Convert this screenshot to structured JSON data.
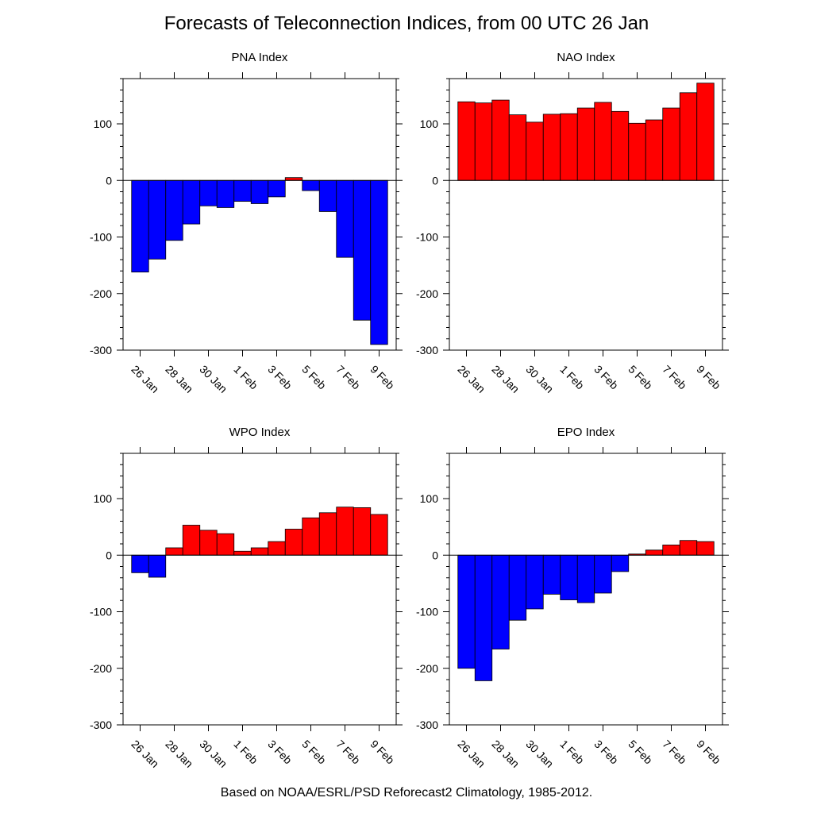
{
  "title": "Forecasts of Teleconnection Indices, from 00 UTC 26 Jan",
  "footer": "Based on NOAA/ESRL/PSD Reforecast2 Climatology, 1985-2012.",
  "colors": {
    "positive": "#ff0000",
    "negative": "#0000ff"
  },
  "chart_data": [
    {
      "type": "bar",
      "title": "PNA Index",
      "categories": [
        "26 Jan",
        "27 Jan",
        "28 Jan",
        "29 Jan",
        "30 Jan",
        "31 Jan",
        "1 Feb",
        "2 Feb",
        "3 Feb",
        "4 Feb",
        "5 Feb",
        "6 Feb",
        "7 Feb",
        "8 Feb",
        "9 Feb"
      ],
      "values": [
        -162,
        -139,
        -106,
        -77,
        -45,
        -48,
        -37,
        -41,
        -29,
        5,
        -18,
        -55,
        -136,
        -247,
        -290
      ],
      "xticks": [
        "26 Jan",
        "28 Jan",
        "30 Jan",
        "1 Feb",
        "3 Feb",
        "5 Feb",
        "7 Feb",
        "9 Feb"
      ],
      "ylim": [
        -300,
        180
      ],
      "yticks": [
        -300,
        -200,
        -100,
        0,
        100
      ]
    },
    {
      "type": "bar",
      "title": "NAO Index",
      "categories": [
        "26 Jan",
        "27 Jan",
        "28 Jan",
        "29 Jan",
        "30 Jan",
        "31 Jan",
        "1 Feb",
        "2 Feb",
        "3 Feb",
        "4 Feb",
        "5 Feb",
        "6 Feb",
        "7 Feb",
        "8 Feb",
        "9 Feb"
      ],
      "values": [
        139,
        137,
        142,
        116,
        103,
        117,
        118,
        128,
        138,
        122,
        101,
        107,
        128,
        155,
        172
      ],
      "xticks": [
        "26 Jan",
        "28 Jan",
        "30 Jan",
        "1 Feb",
        "3 Feb",
        "5 Feb",
        "7 Feb",
        "9 Feb"
      ],
      "ylim": [
        -300,
        180
      ],
      "yticks": [
        -300,
        -200,
        -100,
        0,
        100
      ]
    },
    {
      "type": "bar",
      "title": "WPO Index",
      "categories": [
        "26 Jan",
        "27 Jan",
        "28 Jan",
        "29 Jan",
        "30 Jan",
        "31 Jan",
        "1 Feb",
        "2 Feb",
        "3 Feb",
        "4 Feb",
        "5 Feb",
        "6 Feb",
        "7 Feb",
        "8 Feb",
        "9 Feb"
      ],
      "values": [
        -31,
        -39,
        13,
        53,
        44,
        38,
        7,
        13,
        24,
        46,
        66,
        75,
        85,
        84,
        72
      ],
      "xticks": [
        "26 Jan",
        "28 Jan",
        "30 Jan",
        "1 Feb",
        "3 Feb",
        "5 Feb",
        "7 Feb",
        "9 Feb"
      ],
      "ylim": [
        -300,
        180
      ],
      "yticks": [
        -300,
        -200,
        -100,
        0,
        100
      ]
    },
    {
      "type": "bar",
      "title": "EPO Index",
      "categories": [
        "26 Jan",
        "27 Jan",
        "28 Jan",
        "29 Jan",
        "30 Jan",
        "31 Jan",
        "1 Feb",
        "2 Feb",
        "3 Feb",
        "4 Feb",
        "5 Feb",
        "6 Feb",
        "7 Feb",
        "8 Feb",
        "9 Feb"
      ],
      "values": [
        -200,
        -222,
        -166,
        -115,
        -95,
        -69,
        -79,
        -84,
        -67,
        -29,
        2,
        9,
        18,
        26,
        24
      ],
      "xticks": [
        "26 Jan",
        "28 Jan",
        "30 Jan",
        "1 Feb",
        "3 Feb",
        "5 Feb",
        "7 Feb",
        "9 Feb"
      ],
      "ylim": [
        -300,
        180
      ],
      "yticks": [
        -300,
        -200,
        -100,
        0,
        100
      ]
    }
  ]
}
